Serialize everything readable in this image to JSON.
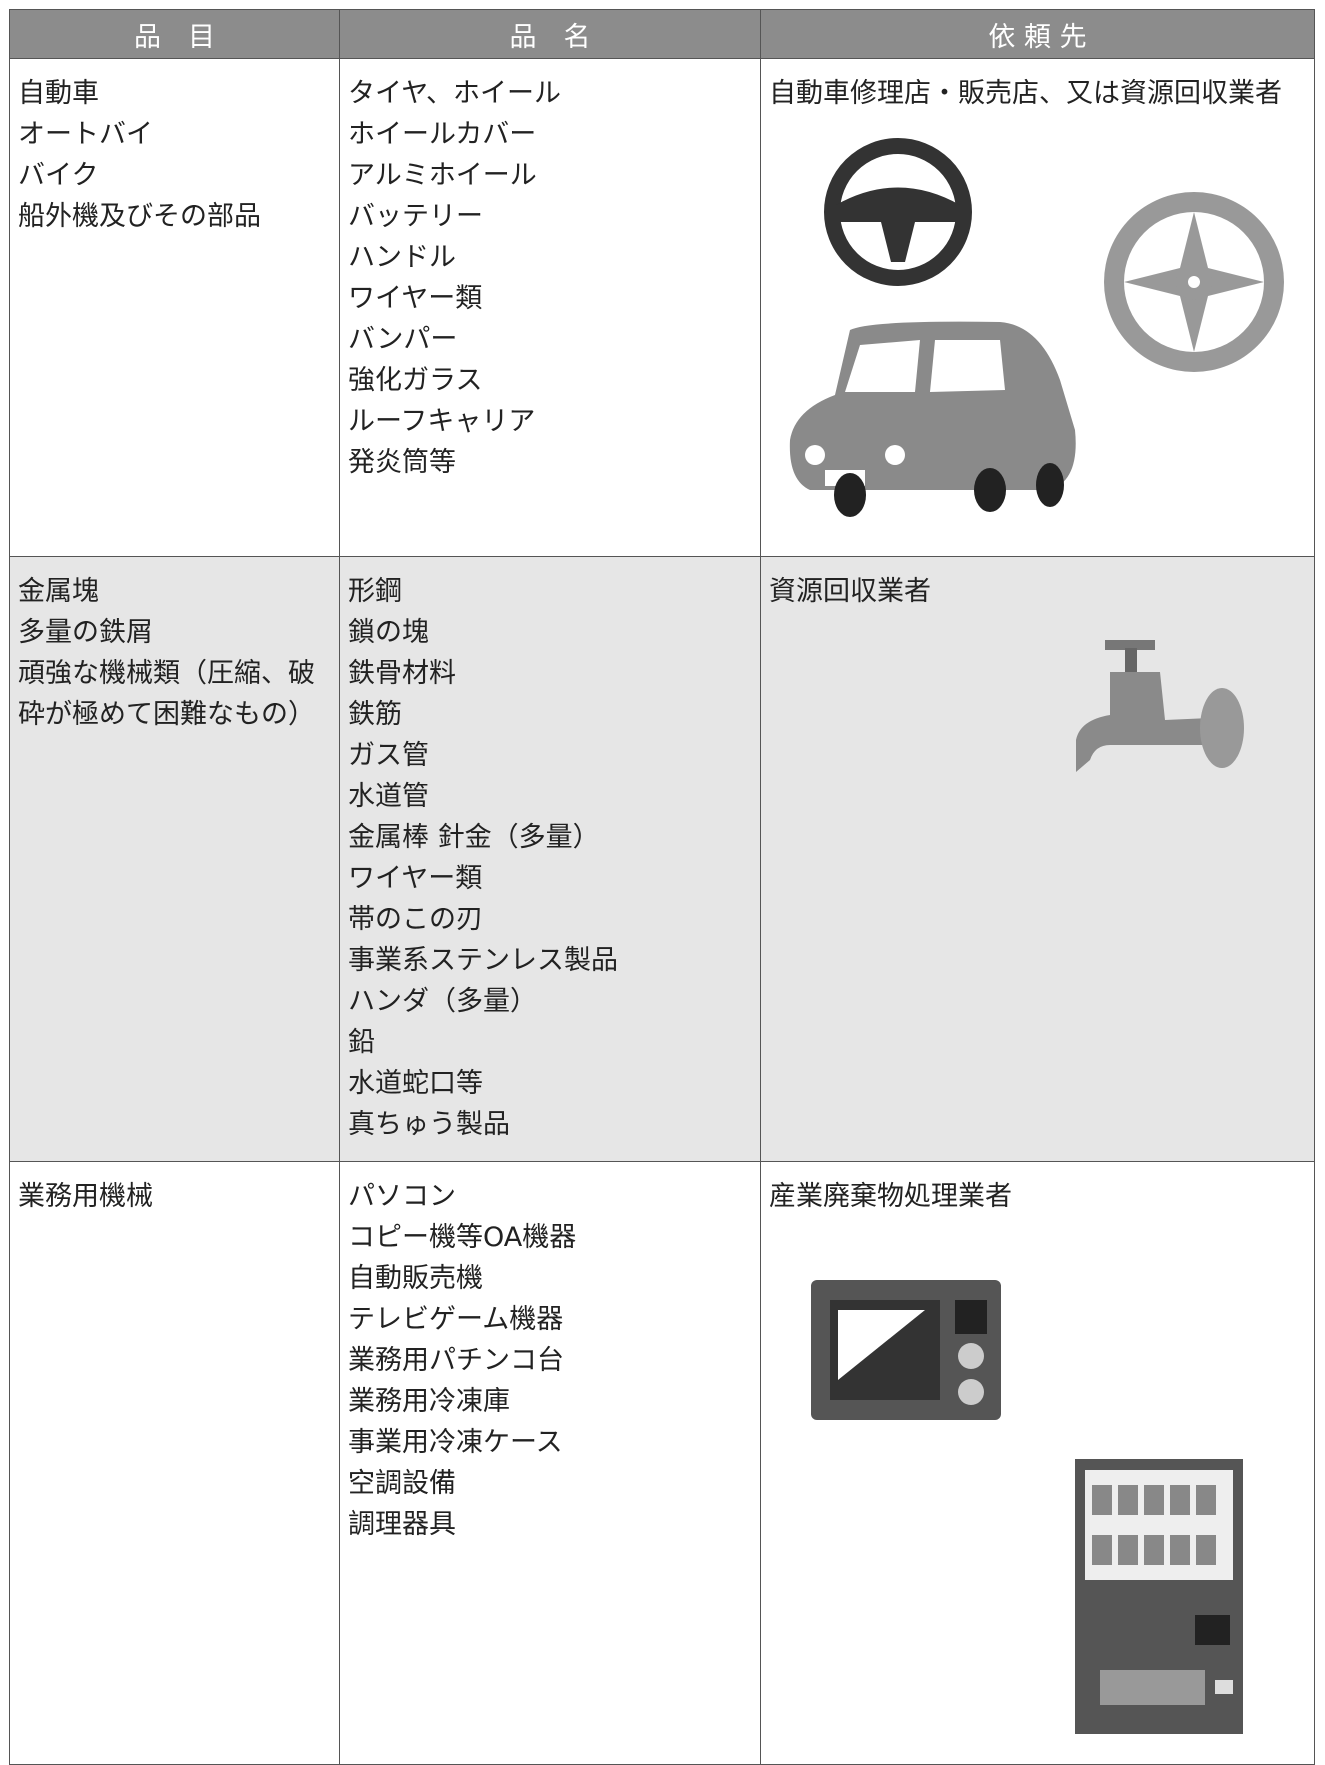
{
  "header": [
    "品　目",
    "品　名",
    "依 頼 先"
  ],
  "rows": [
    {
      "items": [
        "自動車",
        "オートバイ",
        "バイク",
        "船外機及びその部品"
      ],
      "names": [
        "タイヤ、ホイール",
        "ホイールカバー",
        "アルミホイール",
        "バッテリー",
        "ハンドル",
        "ワイヤー類",
        "バンパー",
        "強化ガラス",
        "ルーフキャリア",
        "発炎筒等"
      ],
      "contractor": "自動車修理店・販売店、又は資源回収業者"
    },
    {
      "items": [
        "金属塊",
        "多量の鉄屑",
        "頑強な機械類（圧縮、破砕が極めて困難なもの）"
      ],
      "names": [
        "形鋼",
        "鎖の塊",
        "鉄骨材料",
        "鉄筋",
        "ガス管",
        "水道管",
        "金属棒 針金（多量）",
        "ワイヤー類",
        "帯のこの刃",
        "事業系ステンレス製品",
        "ハンダ（多量）",
        "鉛",
        "水道蛇口等",
        "真ちゅう製品"
      ],
      "contractor": "資源回収業者"
    },
    {
      "items": [
        "業務用機械"
      ],
      "names": [
        "パソコン",
        "コピー機等OA機器",
        "自動販売機",
        "テレビゲーム機器",
        "業務用パチンコ台",
        "業務用冷凍庫",
        "事業用冷凍ケース",
        "空調設備",
        "調理器具"
      ],
      "contractor": "産業廃棄物処理業者"
    }
  ]
}
